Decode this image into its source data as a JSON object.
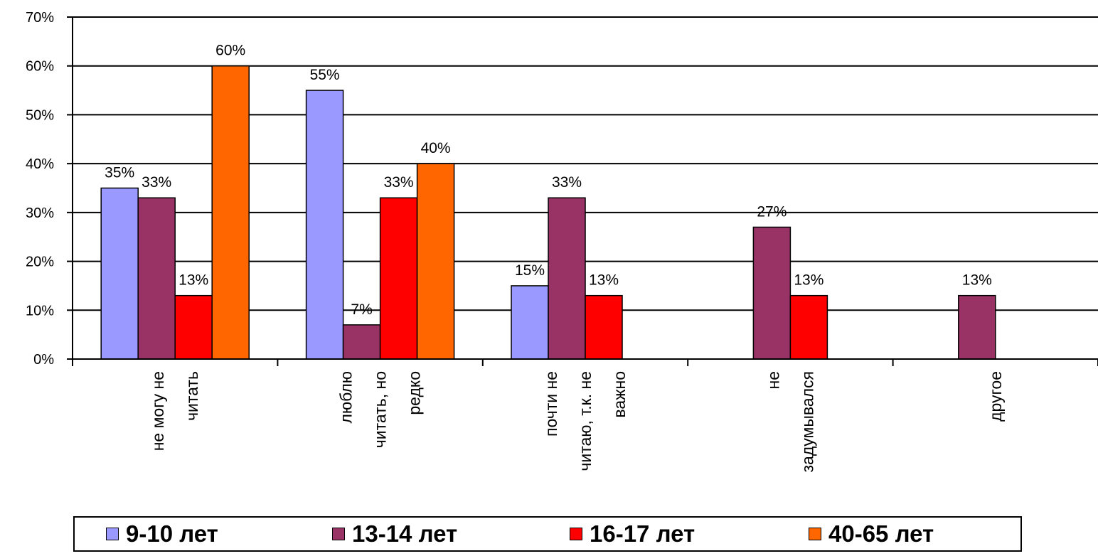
{
  "chart_data": {
    "type": "bar",
    "title": "",
    "xlabel": "",
    "ylabel": "",
    "ylim": [
      0,
      70
    ],
    "yticks": [
      "0%",
      "10%",
      "20%",
      "30%",
      "40%",
      "50%",
      "60%",
      "70%"
    ],
    "grid": true,
    "legend_position": "bottom",
    "categories": [
      [
        "не могу не",
        "читать"
      ],
      [
        "люблю",
        "читать, но",
        "редко"
      ],
      [
        "почти не",
        "читаю, т.к. не",
        "важно"
      ],
      [
        "не",
        "задумывался"
      ],
      [
        "другое"
      ]
    ],
    "series": [
      {
        "name": "9-10 лет",
        "color": "#9999FF",
        "values": [
          35,
          55,
          15,
          null,
          null
        ],
        "labels": [
          "35%",
          "55%",
          "15%",
          "",
          ""
        ]
      },
      {
        "name": "13-14 лет",
        "color": "#993366",
        "values": [
          33,
          7,
          33,
          27,
          13
        ],
        "labels": [
          "33%",
          "7%",
          "33%",
          "27%",
          "13%"
        ]
      },
      {
        "name": "16-17 лет",
        "color": "#FF0000",
        "values": [
          13,
          33,
          13,
          13,
          null
        ],
        "labels": [
          "13%",
          "33%",
          "13%",
          "13%",
          ""
        ]
      },
      {
        "name": "40-65 лет",
        "color": "#FF6600",
        "values": [
          60,
          40,
          null,
          null,
          null
        ],
        "labels": [
          "60%",
          "40%",
          "",
          "",
          ""
        ]
      }
    ]
  }
}
